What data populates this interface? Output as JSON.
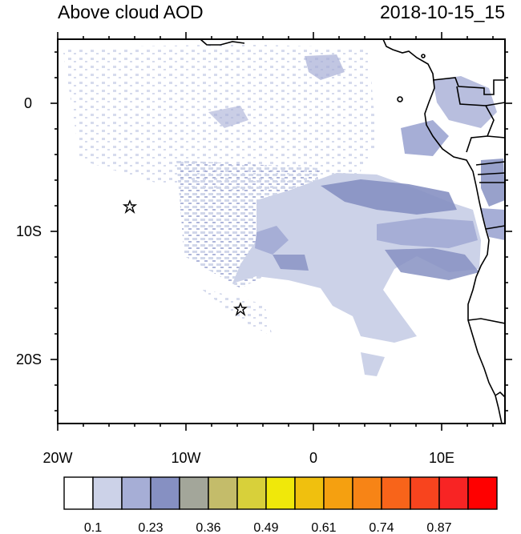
{
  "header": {
    "title": "Above cloud AOD",
    "datetime": "2018-10-15_15"
  },
  "map": {
    "lon_range": [
      -20,
      15
    ],
    "lat_range": [
      -25,
      5
    ],
    "x_ticks": [
      {
        "value": -20,
        "label": "20W"
      },
      {
        "value": -10,
        "label": "10W"
      },
      {
        "value": 0,
        "label": "0"
      },
      {
        "value": 10,
        "label": "10E"
      }
    ],
    "y_ticks": [
      {
        "value": 0,
        "label": "0"
      },
      {
        "value": -10,
        "label": "10S"
      },
      {
        "value": -20,
        "label": "20S"
      }
    ],
    "markers": [
      {
        "name": "star-marker-1",
        "lon": -14.4,
        "lat": -8.0
      },
      {
        "name": "star-marker-2",
        "lon": -5.7,
        "lat": -16.0
      }
    ]
  },
  "colorbar": {
    "colors": [
      "#ffffff",
      "#ccd2e8",
      "#a6aed6",
      "#8690c2",
      "#a3a69a",
      "#c4bc6a",
      "#d8d03a",
      "#f0e80a",
      "#f0c00e",
      "#f5a010",
      "#f78416",
      "#f8641a",
      "#f8441e",
      "#f82424",
      "#ff0000"
    ],
    "labels": [
      "0.1",
      "0.23",
      "0.36",
      "0.49",
      "0.61",
      "0.74",
      "0.87"
    ]
  }
}
